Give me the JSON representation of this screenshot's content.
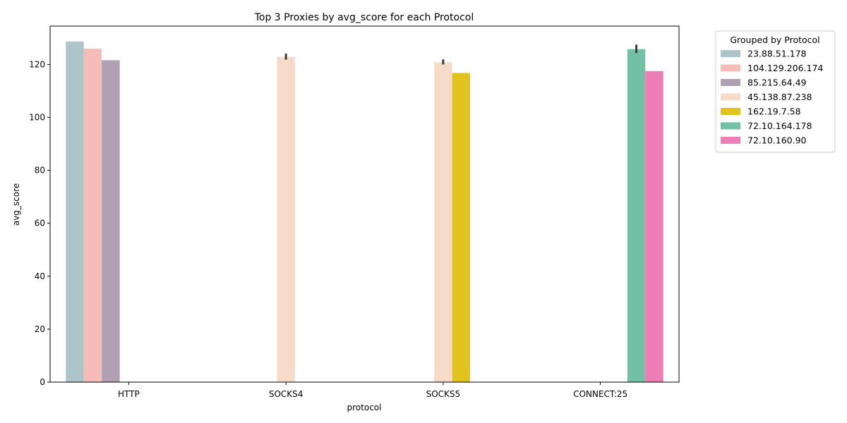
{
  "chart_data": {
    "type": "bar",
    "title": "Top 3 Proxies by avg_score for each Protocol",
    "xlabel": "protocol",
    "ylabel": "avg_score",
    "categories": [
      "HTTP",
      "SOCKS4",
      "SOCKS5",
      "CONNECT:25"
    ],
    "ylim": [
      0,
      134.5
    ],
    "yticks": [
      0,
      20,
      40,
      60,
      80,
      100,
      120
    ],
    "grid": false,
    "legend": {
      "title": "Grouped by Protocol",
      "placement": "outside-top-right"
    },
    "series": [
      {
        "name": "23.88.51.178",
        "color": "#aec4cb",
        "values": [
          128.7,
          null,
          null,
          null
        ],
        "err": [
          null,
          null,
          null,
          null
        ]
      },
      {
        "name": "104.129.206.174",
        "color": "#f6bcb8",
        "values": [
          126.0,
          null,
          null,
          null
        ],
        "err": [
          null,
          null,
          null,
          null
        ]
      },
      {
        "name": "85.215.64.49",
        "color": "#b19fb4",
        "values": [
          121.6,
          null,
          null,
          null
        ],
        "err": [
          null,
          null,
          null,
          null
        ]
      },
      {
        "name": "45.138.87.238",
        "color": "#f6dbc9",
        "values": [
          null,
          122.9,
          120.8,
          null
        ],
        "err": [
          null,
          [
            121.8,
            124.1
          ],
          [
            120.0,
            121.9
          ],
          null
        ]
      },
      {
        "name": "162.19.7.58",
        "color": "#e2c21d",
        "values": [
          null,
          null,
          116.8,
          null
        ],
        "err": [
          null,
          null,
          null,
          null
        ]
      },
      {
        "name": "72.10.164.178",
        "color": "#72c1a4",
        "values": [
          null,
          null,
          null,
          125.8
        ],
        "err": [
          null,
          null,
          null,
          [
            124.3,
            127.5
          ]
        ]
      },
      {
        "name": "72.10.160.90",
        "color": "#ed7db5",
        "values": [
          null,
          null,
          null,
          117.5
        ],
        "err": [
          null,
          null,
          null,
          null
        ]
      }
    ]
  }
}
